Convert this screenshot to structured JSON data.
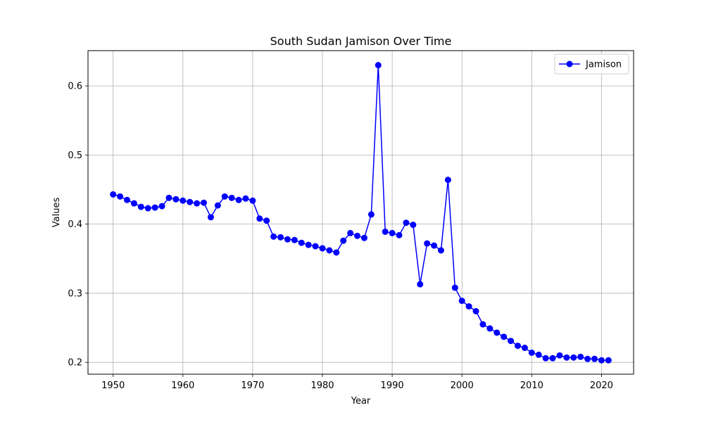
{
  "chart_data": {
    "type": "line",
    "title": "South Sudan Jamison Over Time",
    "xlabel": "Year",
    "ylabel": "Values",
    "xlim": [
      1946.4,
      2024.6
    ],
    "ylim": [
      0.1829,
      0.651
    ],
    "xticks": [
      1950,
      1960,
      1970,
      1980,
      1990,
      2000,
      2010,
      2020
    ],
    "yticks": [
      0.2,
      0.3,
      0.4,
      0.5,
      0.6
    ],
    "ytick_labels": [
      "0.2",
      "0.3",
      "0.4",
      "0.5",
      "0.6"
    ],
    "grid": true,
    "legend_position": "top-right",
    "series": [
      {
        "name": "Jamison",
        "color": "#0000ff",
        "marker": "circle",
        "x": [
          1950,
          1951,
          1952,
          1953,
          1954,
          1955,
          1956,
          1957,
          1958,
          1959,
          1960,
          1961,
          1962,
          1963,
          1964,
          1965,
          1966,
          1967,
          1968,
          1969,
          1970,
          1971,
          1972,
          1973,
          1974,
          1975,
          1976,
          1977,
          1978,
          1979,
          1980,
          1981,
          1982,
          1983,
          1984,
          1985,
          1986,
          1987,
          1988,
          1989,
          1990,
          1991,
          1992,
          1993,
          1994,
          1995,
          1996,
          1997,
          1998,
          1999,
          2000,
          2001,
          2002,
          2003,
          2004,
          2005,
          2006,
          2007,
          2008,
          2009,
          2010,
          2011,
          2012,
          2013,
          2014,
          2015,
          2016,
          2017,
          2018,
          2019,
          2020,
          2021
        ],
        "y": [
          0.443,
          0.44,
          0.435,
          0.43,
          0.425,
          0.423,
          0.424,
          0.426,
          0.438,
          0.436,
          0.434,
          0.432,
          0.43,
          0.431,
          0.41,
          0.427,
          0.44,
          0.438,
          0.435,
          0.437,
          0.434,
          0.408,
          0.405,
          0.382,
          0.381,
          0.378,
          0.377,
          0.373,
          0.37,
          0.368,
          0.365,
          0.362,
          0.359,
          0.376,
          0.387,
          0.383,
          0.38,
          0.414,
          0.63,
          0.389,
          0.387,
          0.384,
          0.402,
          0.399,
          0.313,
          0.372,
          0.369,
          0.362,
          0.464,
          0.308,
          0.289,
          0.281,
          0.274,
          0.255,
          0.249,
          0.243,
          0.237,
          0.231,
          0.224,
          0.221,
          0.214,
          0.211,
          0.206,
          0.206,
          0.21,
          0.207,
          0.207,
          0.208,
          0.205,
          0.205,
          0.203,
          0.203
        ]
      }
    ]
  }
}
